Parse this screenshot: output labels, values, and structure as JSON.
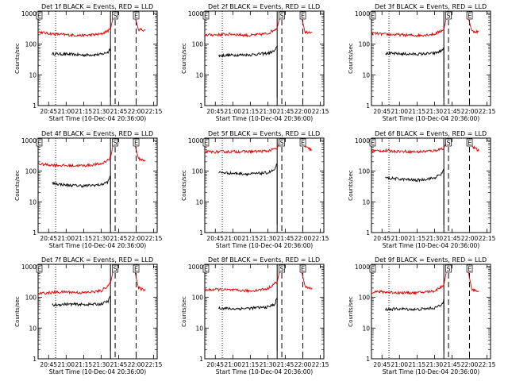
{
  "figure": {
    "xlabel": "Start Time (10-Dec-04 20:36:00)",
    "ylabel": "Counts/sec",
    "title_suffix": "BLACK = Events, RED = LLD",
    "x_ticks": [
      "20:45",
      "21:00",
      "21:15",
      "21:30",
      "21:45",
      "22:00",
      "22:15"
    ],
    "y_ticks": [
      "1",
      "10",
      "100",
      "1000"
    ],
    "markers": [
      "E",
      "S",
      "E"
    ],
    "colors": {
      "events": "#000000",
      "lld": "#e00000"
    }
  },
  "chart_data": [
    {
      "type": "line",
      "title": "Det 1f BLACK = Events, RED = LLD",
      "detector": "Det 1f",
      "xlabel": "Start Time (10-Dec-04 20:36:00)",
      "ylabel": "Counts/sec",
      "yscale": "log",
      "ylim": [
        1,
        1000
      ],
      "xlim": [
        "20:36",
        "22:18"
      ],
      "series": [
        {
          "name": "Events",
          "color": "#000000",
          "x": [
            "20:48",
            "21:00",
            "21:15",
            "21:30",
            "21:36",
            "21:38"
          ],
          "values": [
            48,
            47,
            44,
            46,
            55,
            75
          ]
        },
        {
          "name": "LLD",
          "color": "#e00000",
          "x": [
            "20:36",
            "20:45",
            "21:00",
            "21:15",
            "21:30",
            "21:38",
            "21:41",
            "21:58",
            "22:02",
            "22:08"
          ],
          "values": [
            250,
            220,
            200,
            190,
            210,
            300,
            1000,
            1000,
            300,
            280
          ]
        }
      ],
      "vlines": [
        {
          "x": "20:51",
          "style": "dotted"
        },
        {
          "x": "21:38",
          "style": "solid"
        },
        {
          "x": "21:42",
          "style": "dashed"
        },
        {
          "x": "22:00",
          "style": "dashed"
        }
      ]
    },
    {
      "type": "line",
      "title": "Det 2f BLACK = Events, RED = LLD",
      "detector": "Det 2f",
      "xlabel": "Start Time (10-Dec-04 20:36:00)",
      "ylabel": "Counts/sec",
      "yscale": "log",
      "ylim": [
        1,
        1000
      ],
      "xlim": [
        "20:36",
        "22:18"
      ],
      "series": [
        {
          "name": "Events",
          "color": "#000000",
          "x": [
            "20:48",
            "21:00",
            "21:15",
            "21:30",
            "21:36",
            "21:38"
          ],
          "values": [
            42,
            44,
            45,
            50,
            60,
            85
          ]
        },
        {
          "name": "LLD",
          "color": "#e00000",
          "x": [
            "20:36",
            "20:45",
            "21:00",
            "21:15",
            "21:30",
            "21:38",
            "21:41",
            "21:58",
            "22:02",
            "22:08"
          ],
          "values": [
            200,
            200,
            210,
            190,
            220,
            330,
            1000,
            1000,
            240,
            250
          ]
        }
      ],
      "vlines": [
        {
          "x": "20:51",
          "style": "dotted"
        },
        {
          "x": "21:38",
          "style": "solid"
        },
        {
          "x": "21:42",
          "style": "dashed"
        },
        {
          "x": "22:00",
          "style": "dashed"
        }
      ]
    },
    {
      "type": "line",
      "title": "Det 3f BLACK = Events, RED = LLD",
      "detector": "Det 3f",
      "xlabel": "Start Time (10-Dec-04 20:36:00)",
      "ylabel": "Counts/sec",
      "yscale": "log",
      "ylim": [
        1,
        1000
      ],
      "xlim": [
        "20:36",
        "22:18"
      ],
      "series": [
        {
          "name": "Events",
          "color": "#000000",
          "x": [
            "20:48",
            "21:00",
            "21:15",
            "21:30",
            "21:36",
            "21:38"
          ],
          "values": [
            50,
            48,
            47,
            50,
            60,
            80
          ]
        },
        {
          "name": "LLD",
          "color": "#e00000",
          "x": [
            "20:36",
            "20:45",
            "21:00",
            "21:15",
            "21:30",
            "21:38",
            "21:41",
            "21:58",
            "22:02",
            "22:08"
          ],
          "values": [
            230,
            210,
            200,
            190,
            210,
            300,
            1000,
            1000,
            260,
            250
          ]
        }
      ],
      "vlines": [
        {
          "x": "20:51",
          "style": "dotted"
        },
        {
          "x": "21:38",
          "style": "solid"
        },
        {
          "x": "21:42",
          "style": "dashed"
        },
        {
          "x": "22:00",
          "style": "dashed"
        }
      ]
    },
    {
      "type": "line",
      "title": "Det 4f BLACK = Events, RED = LLD",
      "detector": "Det 4f",
      "xlabel": "Start Time (10-Dec-04 20:36:00)",
      "ylabel": "Counts/sec",
      "yscale": "log",
      "ylim": [
        1,
        1000
      ],
      "xlim": [
        "20:36",
        "22:18"
      ],
      "series": [
        {
          "name": "Events",
          "color": "#000000",
          "x": [
            "20:48",
            "21:00",
            "21:15",
            "21:30",
            "21:36",
            "21:38"
          ],
          "values": [
            40,
            35,
            33,
            36,
            45,
            70
          ]
        },
        {
          "name": "LLD",
          "color": "#e00000",
          "x": [
            "20:36",
            "20:45",
            "21:00",
            "21:15",
            "21:30",
            "21:38",
            "21:41",
            "21:58",
            "22:02",
            "22:08"
          ],
          "values": [
            170,
            160,
            150,
            150,
            170,
            260,
            1000,
            1000,
            250,
            220
          ]
        }
      ],
      "vlines": [
        {
          "x": "20:51",
          "style": "dotted"
        },
        {
          "x": "21:38",
          "style": "solid"
        },
        {
          "x": "21:42",
          "style": "dashed"
        },
        {
          "x": "22:00",
          "style": "dashed"
        }
      ]
    },
    {
      "type": "line",
      "title": "Det 5f BLACK = Events, RED = LLD",
      "detector": "Det 5f",
      "xlabel": "Start Time (10-Dec-04 20:36:00)",
      "ylabel": "Counts/sec",
      "yscale": "log",
      "ylim": [
        1,
        1000
      ],
      "xlim": [
        "20:36",
        "22:18"
      ],
      "series": [
        {
          "name": "Events",
          "color": "#000000",
          "x": [
            "20:48",
            "21:00",
            "21:15",
            "21:30",
            "21:36",
            "21:38"
          ],
          "values": [
            90,
            85,
            80,
            88,
            110,
            170
          ]
        },
        {
          "name": "LLD",
          "color": "#e00000",
          "x": [
            "20:36",
            "20:45",
            "21:00",
            "21:15",
            "21:30",
            "21:38",
            "21:41",
            "21:58",
            "22:02",
            "22:08"
          ],
          "values": [
            420,
            420,
            430,
            430,
            450,
            550,
            1000,
            1000,
            600,
            480
          ]
        }
      ],
      "vlines": [
        {
          "x": "20:51",
          "style": "dotted"
        },
        {
          "x": "21:38",
          "style": "solid"
        },
        {
          "x": "21:42",
          "style": "dashed"
        },
        {
          "x": "22:00",
          "style": "dashed"
        }
      ]
    },
    {
      "type": "line",
      "title": "Det 6f BLACK = Events, RED = LLD",
      "detector": "Det 6f",
      "xlabel": "Start Time (10-Dec-04 20:36:00)",
      "ylabel": "Counts/sec",
      "yscale": "log",
      "ylim": [
        1,
        1000
      ],
      "xlim": [
        "20:36",
        "22:18"
      ],
      "series": [
        {
          "name": "Events",
          "color": "#000000",
          "x": [
            "20:48",
            "21:00",
            "21:15",
            "21:30",
            "21:36",
            "21:38"
          ],
          "values": [
            60,
            55,
            50,
            60,
            80,
            120
          ]
        },
        {
          "name": "LLD",
          "color": "#e00000",
          "x": [
            "20:36",
            "20:45",
            "21:00",
            "21:15",
            "21:30",
            "21:38",
            "21:41",
            "21:58",
            "22:02",
            "22:08"
          ],
          "values": [
            450,
            460,
            440,
            420,
            460,
            560,
            1000,
            1000,
            650,
            450
          ]
        }
      ],
      "vlines": [
        {
          "x": "20:51",
          "style": "dotted"
        },
        {
          "x": "21:38",
          "style": "solid"
        },
        {
          "x": "21:42",
          "style": "dashed"
        },
        {
          "x": "22:00",
          "style": "dashed"
        }
      ]
    },
    {
      "type": "line",
      "title": "Det 7f BLACK = Events, RED = LLD",
      "detector": "Det 7f",
      "xlabel": "Start Time (10-Dec-04 20:36:00)",
      "ylabel": "Counts/sec",
      "yscale": "log",
      "ylim": [
        1,
        1000
      ],
      "xlim": [
        "20:36",
        "22:18"
      ],
      "series": [
        {
          "name": "Events",
          "color": "#000000",
          "x": [
            "20:48",
            "21:00",
            "21:15",
            "21:30",
            "21:36",
            "21:38"
          ],
          "values": [
            55,
            60,
            58,
            60,
            75,
            110
          ]
        },
        {
          "name": "LLD",
          "color": "#e00000",
          "x": [
            "20:36",
            "20:45",
            "21:00",
            "21:15",
            "21:30",
            "21:38",
            "21:41",
            "21:58",
            "22:02",
            "22:08"
          ],
          "values": [
            130,
            140,
            150,
            140,
            160,
            280,
            1000,
            1000,
            200,
            170
          ]
        }
      ],
      "vlines": [
        {
          "x": "20:51",
          "style": "dotted"
        },
        {
          "x": "21:38",
          "style": "solid"
        },
        {
          "x": "21:42",
          "style": "dashed"
        },
        {
          "x": "22:00",
          "style": "dashed"
        }
      ]
    },
    {
      "type": "line",
      "title": "Det 8f BLACK = Events, RED = LLD",
      "detector": "Det 8f",
      "xlabel": "Start Time (10-Dec-04 20:36:00)",
      "ylabel": "Counts/sec",
      "yscale": "log",
      "ylim": [
        1,
        1000
      ],
      "xlim": [
        "20:36",
        "22:18"
      ],
      "series": [
        {
          "name": "Events",
          "color": "#000000",
          "x": [
            "20:48",
            "21:00",
            "21:15",
            "21:30",
            "21:36",
            "21:38"
          ],
          "values": [
            45,
            42,
            44,
            48,
            60,
            95
          ]
        },
        {
          "name": "LLD",
          "color": "#e00000",
          "x": [
            "20:36",
            "20:45",
            "21:00",
            "21:15",
            "21:30",
            "21:38",
            "21:41",
            "21:58",
            "22:02",
            "22:08"
          ],
          "values": [
            170,
            180,
            170,
            160,
            190,
            320,
            1000,
            1000,
            220,
            180
          ]
        }
      ],
      "vlines": [
        {
          "x": "20:51",
          "style": "dotted"
        },
        {
          "x": "21:38",
          "style": "solid"
        },
        {
          "x": "21:42",
          "style": "dashed"
        },
        {
          "x": "22:00",
          "style": "dashed"
        }
      ]
    },
    {
      "type": "line",
      "title": "Det 9f BLACK = Events, RED = LLD",
      "detector": "Det 9f",
      "xlabel": "Start Time (10-Dec-04 20:36:00)",
      "ylabel": "Counts/sec",
      "yscale": "log",
      "ylim": [
        1,
        1000
      ],
      "xlim": [
        "20:36",
        "22:18"
      ],
      "series": [
        {
          "name": "Events",
          "color": "#000000",
          "x": [
            "20:48",
            "21:00",
            "21:15",
            "21:30",
            "21:36",
            "21:38"
          ],
          "values": [
            40,
            42,
            40,
            45,
            55,
            85
          ]
        },
        {
          "name": "LLD",
          "color": "#e00000",
          "x": [
            "20:36",
            "20:45",
            "21:00",
            "21:15",
            "21:30",
            "21:38",
            "21:41",
            "21:58",
            "22:02",
            "22:08"
          ],
          "values": [
            150,
            150,
            140,
            140,
            160,
            250,
            1000,
            1000,
            180,
            160
          ]
        }
      ],
      "vlines": [
        {
          "x": "20:51",
          "style": "dotted"
        },
        {
          "x": "21:38",
          "style": "solid"
        },
        {
          "x": "21:42",
          "style": "dashed"
        },
        {
          "x": "22:00",
          "style": "dashed"
        }
      ]
    }
  ]
}
